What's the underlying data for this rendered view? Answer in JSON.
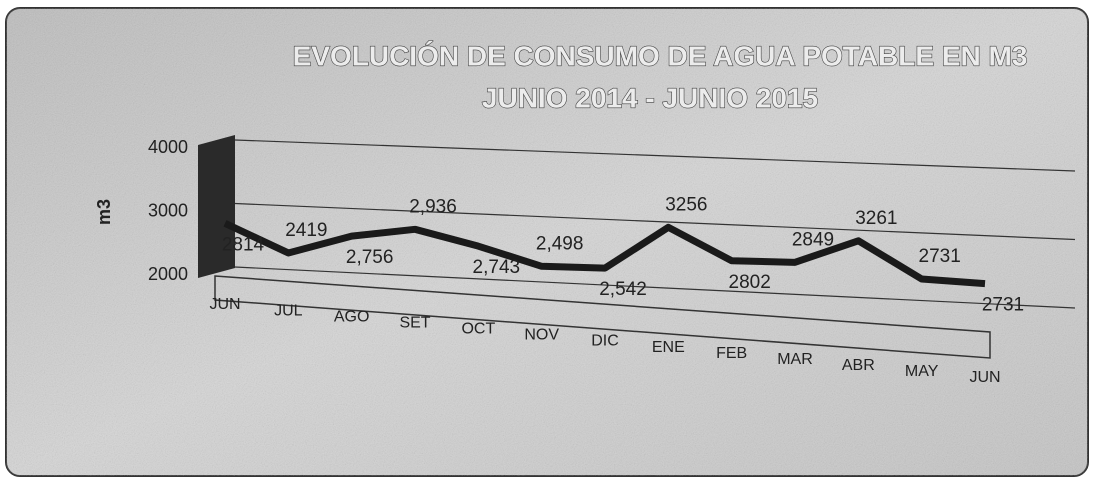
{
  "chart_data": {
    "type": "line",
    "title": "EVOLUCIÓN DE CONSUMO DE AGUA POTABLE  EN M3",
    "subtitle": "JUNIO 2014 - JUNIO 2015",
    "y_label": "m3",
    "categories": [
      "JUN",
      "JUL",
      "AGO",
      "SET",
      "OCT",
      "NOV",
      "DIC",
      "ENE",
      "FEB",
      "MAR",
      "ABR",
      "MAY",
      "JUN"
    ],
    "series": [
      {
        "name": "m3",
        "color": "#1a1a1a",
        "values": [
          2814,
          2419,
          2756,
          2936,
          2743,
          2498,
          2542,
          3256,
          2802,
          2849,
          3261,
          2731,
          2731
        ],
        "value_labels": [
          "2814",
          "2419",
          "2,756",
          "2,936",
          "2,743",
          "2,498",
          "2,542",
          "3256",
          "2802",
          "2849",
          "3261",
          "2731",
          "2731"
        ]
      }
    ],
    "ylim": [
      2000,
      4000
    ],
    "yticks": [
      2000,
      3000,
      4000
    ],
    "grid": true
  }
}
